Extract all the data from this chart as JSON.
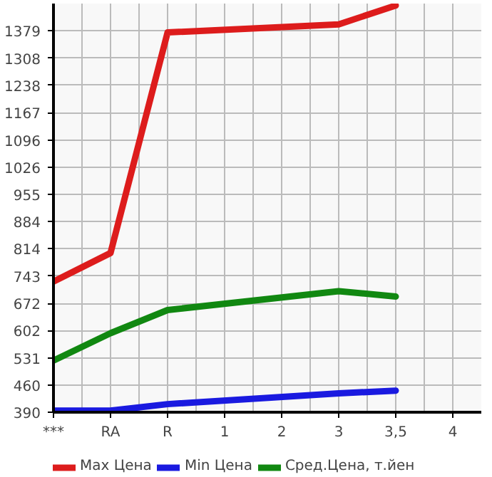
{
  "chart_data": {
    "type": "line",
    "categories": [
      "***",
      "RA",
      "R",
      "1",
      "2",
      "3",
      "3,5",
      "4"
    ],
    "series": [
      {
        "name": "Max Цена",
        "color": "#dd1c1c",
        "x": [
          "***",
          "RA",
          "R",
          "3",
          "3,5"
        ],
        "values": [
          729,
          803,
          1375,
          1396,
          1445
        ]
      },
      {
        "name": "Min Цена",
        "color": "#1a1ae0",
        "x": [
          "***",
          "RA",
          "R",
          "3",
          "3,5"
        ],
        "values": [
          394,
          394,
          411,
          439,
          446
        ]
      },
      {
        "name": "Сред.Цена, т.йен",
        "color": "#118811",
        "x": [
          "***",
          "RA",
          "R",
          "3",
          "3,5"
        ],
        "values": [
          524,
          595,
          655,
          704,
          690
        ]
      }
    ],
    "ylim": [
      390,
      1450
    ],
    "yticks": [
      390,
      460,
      531,
      602,
      672,
      743,
      814,
      884,
      955,
      1026,
      1096,
      1167,
      1238,
      1308,
      1379
    ],
    "grid": true,
    "legend": "bottom",
    "marker": "none",
    "line_style": "solid"
  }
}
